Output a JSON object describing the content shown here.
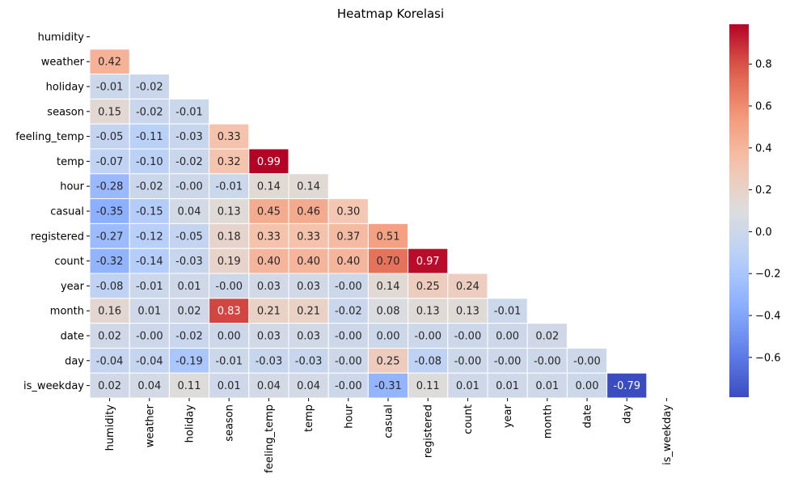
{
  "chart_data": {
    "type": "heatmap",
    "title": "Heatmap Korelasi",
    "labels": [
      "humidity",
      "weather",
      "holiday",
      "season",
      "feeling_temp",
      "temp",
      "hour",
      "casual",
      "registered",
      "count",
      "year",
      "month",
      "date",
      "day",
      "is_weekday"
    ],
    "mask": "upper-triangle-and-diagonal",
    "values": [
      [
        null,
        null,
        null,
        null,
        null,
        null,
        null,
        null,
        null,
        null,
        null,
        null,
        null,
        null,
        null
      ],
      [
        0.42,
        null,
        null,
        null,
        null,
        null,
        null,
        null,
        null,
        null,
        null,
        null,
        null,
        null,
        null
      ],
      [
        -0.01,
        -0.02,
        null,
        null,
        null,
        null,
        null,
        null,
        null,
        null,
        null,
        null,
        null,
        null,
        null
      ],
      [
        0.15,
        -0.02,
        -0.01,
        null,
        null,
        null,
        null,
        null,
        null,
        null,
        null,
        null,
        null,
        null,
        null
      ],
      [
        -0.05,
        -0.11,
        -0.03,
        0.33,
        null,
        null,
        null,
        null,
        null,
        null,
        null,
        null,
        null,
        null,
        null
      ],
      [
        -0.07,
        -0.1,
        -0.02,
        0.32,
        0.99,
        null,
        null,
        null,
        null,
        null,
        null,
        null,
        null,
        null,
        null
      ],
      [
        -0.28,
        -0.02,
        -0.0,
        -0.01,
        0.14,
        0.14,
        null,
        null,
        null,
        null,
        null,
        null,
        null,
        null,
        null
      ],
      [
        -0.35,
        -0.15,
        0.04,
        0.13,
        0.45,
        0.46,
        0.3,
        null,
        null,
        null,
        null,
        null,
        null,
        null,
        null
      ],
      [
        -0.27,
        -0.12,
        -0.05,
        0.18,
        0.33,
        0.33,
        0.37,
        0.51,
        null,
        null,
        null,
        null,
        null,
        null,
        null
      ],
      [
        -0.32,
        -0.14,
        -0.03,
        0.19,
        0.4,
        0.4,
        0.4,
        0.7,
        0.97,
        null,
        null,
        null,
        null,
        null,
        null
      ],
      [
        -0.08,
        -0.01,
        0.01,
        -0.0,
        0.03,
        0.03,
        -0.0,
        0.14,
        0.25,
        0.24,
        null,
        null,
        null,
        null,
        null
      ],
      [
        0.16,
        0.01,
        0.02,
        0.83,
        0.21,
        0.21,
        -0.02,
        0.08,
        0.13,
        0.13,
        -0.01,
        null,
        null,
        null,
        null
      ],
      [
        0.02,
        -0.0,
        -0.02,
        0.0,
        0.03,
        0.03,
        -0.0,
        0.0,
        -0.0,
        -0.0,
        0.0,
        0.02,
        null,
        null,
        null
      ],
      [
        -0.04,
        -0.04,
        -0.19,
        -0.01,
        -0.03,
        -0.03,
        -0.0,
        0.25,
        -0.08,
        -0.0,
        -0.0,
        -0.0,
        -0.0,
        null,
        null
      ],
      [
        0.02,
        0.04,
        0.11,
        0.01,
        0.04,
        0.04,
        -0.0,
        -0.31,
        0.11,
        0.01,
        0.01,
        0.01,
        0.0,
        -0.79,
        null
      ]
    ],
    "colormap": "coolwarm",
    "vmin": -0.79,
    "vmax": 0.99,
    "annotation_format": "0.00",
    "colorbar": {
      "ticks": [
        -0.6,
        -0.4,
        -0.2,
        0.0,
        0.2,
        0.4,
        0.6,
        0.8
      ],
      "tick_labels": [
        "−0.6",
        "−0.4",
        "−0.2",
        "0.0",
        "0.2",
        "0.4",
        "0.6",
        "0.8"
      ]
    }
  }
}
